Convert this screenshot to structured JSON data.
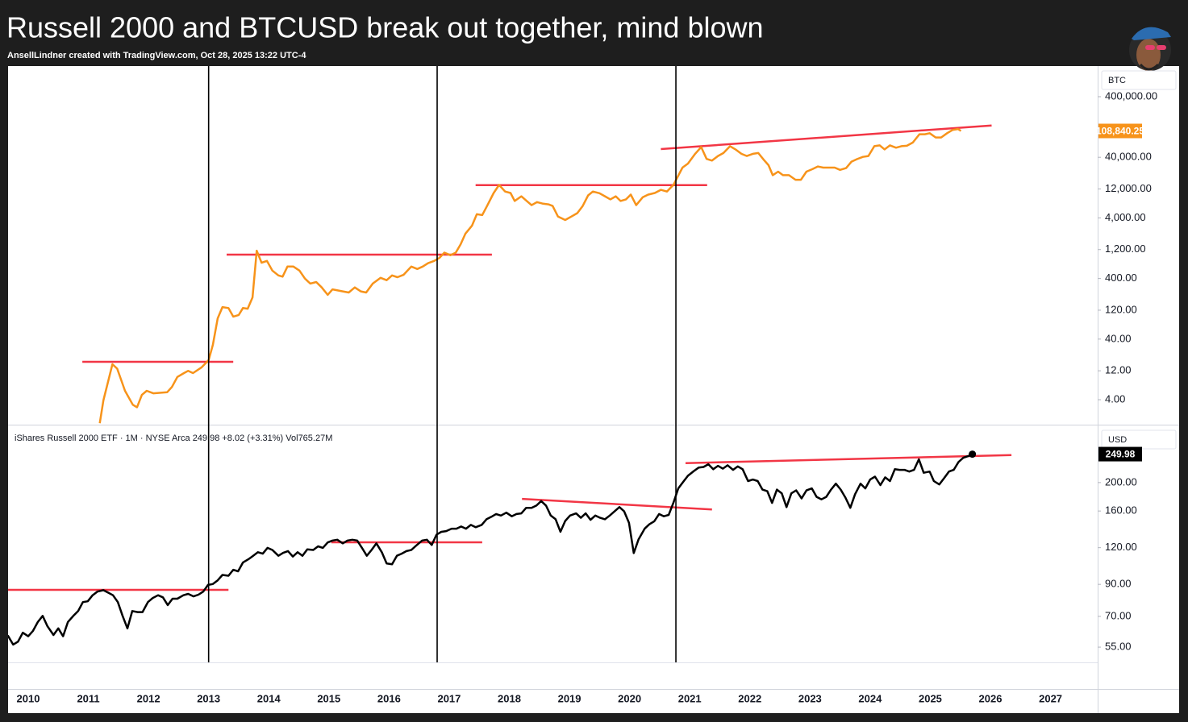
{
  "header": {
    "title": "Russell 2000 and BTCUSD break out together, mind blown",
    "subtitle": "AnsellLindner created with TradingView.com, Oct 28, 2025 13:22 UTC-4"
  },
  "chart_data": [
    {
      "type": "line",
      "axis_label": "BTC",
      "log_scale": true,
      "grid": false,
      "color": "#f7931a",
      "last_value_label": "108,840.25",
      "xlim": [
        2009.665,
        2027.77
      ],
      "ylim": [
        1.55,
        1280000
      ],
      "yticks": [
        {
          "value": 4,
          "label": "4.00"
        },
        {
          "value": 12,
          "label": "12.00"
        },
        {
          "value": 40,
          "label": "40.00"
        },
        {
          "value": 120,
          "label": "120.00"
        },
        {
          "value": 400,
          "label": "400.00"
        },
        {
          "value": 1200,
          "label": "1,200.00"
        },
        {
          "value": 4000,
          "label": "4,000.00"
        },
        {
          "value": 12000,
          "label": "12,000.00"
        },
        {
          "value": 40000,
          "label": "40,000.00"
        },
        {
          "value": 400000,
          "label": "400,000.00"
        }
      ],
      "vlines": [
        2013.0,
        2016.8,
        2020.77
      ],
      "vline_color": "#000000",
      "trendline_color": "#f23645",
      "trendlines": [
        {
          "x": [
            2010.9,
            2013.41
          ],
          "values": [
            16.9,
            16.9
          ]
        },
        {
          "x": [
            2013.3,
            2017.71
          ],
          "values": [
            990,
            990
          ]
        },
        {
          "x": [
            2017.44,
            2021.29
          ],
          "values": [
            13900,
            13900
          ]
        },
        {
          "x": [
            2020.52,
            2026.02
          ],
          "values": [
            54700,
            134000
          ]
        }
      ],
      "x": [
        2011.19,
        2011.25,
        2011.4,
        2011.48,
        2011.61,
        2011.74,
        2011.81,
        2011.89,
        2011.97,
        2012.08,
        2012.31,
        2012.39,
        2012.48,
        2012.59,
        2012.66,
        2012.74,
        2012.88,
        2013.0,
        2013.07,
        2013.15,
        2013.23,
        2013.33,
        2013.41,
        2013.5,
        2013.57,
        2013.65,
        2013.73,
        2013.8,
        2013.88,
        2013.97,
        2014.06,
        2014.16,
        2014.23,
        2014.31,
        2014.41,
        2014.51,
        2014.6,
        2014.69,
        2014.79,
        2014.88,
        2014.98,
        2015.06,
        2015.23,
        2015.33,
        2015.43,
        2015.53,
        2015.62,
        2015.73,
        2015.86,
        2015.96,
        2016.05,
        2016.14,
        2016.24,
        2016.37,
        2016.47,
        2016.56,
        2016.65,
        2016.75,
        2016.84,
        2016.92,
        2017.02,
        2017.11,
        2017.19,
        2017.27,
        2017.38,
        2017.46,
        2017.55,
        2017.63,
        2017.74,
        2017.83,
        2017.93,
        2018.02,
        2018.09,
        2018.2,
        2018.29,
        2018.37,
        2018.46,
        2018.55,
        2018.65,
        2018.72,
        2018.81,
        2018.93,
        2019.03,
        2019.13,
        2019.22,
        2019.31,
        2019.39,
        2019.5,
        2019.59,
        2019.68,
        2019.77,
        2019.85,
        2019.94,
        2020.02,
        2020.11,
        2020.22,
        2020.31,
        2020.42,
        2020.52,
        2020.62,
        2020.73,
        2020.88,
        2020.97,
        2021.09,
        2021.19,
        2021.28,
        2021.37,
        2021.47,
        2021.56,
        2021.67,
        2021.76,
        2021.86,
        2021.95,
        2022.05,
        2022.14,
        2022.23,
        2022.31,
        2022.38,
        2022.47,
        2022.55,
        2022.65,
        2022.76,
        2022.85,
        2022.94,
        2023.04,
        2023.13,
        2023.22,
        2023.32,
        2023.41,
        2023.5,
        2023.6,
        2023.69,
        2023.78,
        2023.88,
        2023.97,
        2024.07,
        2024.16,
        2024.24,
        2024.33,
        2024.43,
        2024.52,
        2024.61,
        2024.71,
        2024.82,
        2024.91,
        2024.99,
        2025.09,
        2025.18,
        2025.28,
        2025.37,
        2025.46,
        2025.51
      ],
      "values": [
        1.64,
        3.9,
        15.4,
        13.0,
        5.6,
        3.3,
        3.0,
        4.8,
        5.6,
        5.1,
        5.3,
        6.5,
        9.5,
        11.0,
        12.0,
        11.0,
        13.6,
        18.0,
        32,
        88,
        135,
        130,
        94,
        100,
        130,
        127,
        195,
        1150,
        730,
        780,
        540,
        450,
        430,
        630,
        630,
        540,
        400,
        330,
        350,
        285,
        215,
        265,
        245,
        235,
        285,
        245,
        235,
        330,
        410,
        375,
        450,
        420,
        460,
        630,
        575,
        630,
        715,
        780,
        880,
        1070,
        970,
        1070,
        1460,
        2200,
        2990,
        4600,
        4450,
        6300,
        10300,
        14000,
        10900,
        10300,
        7600,
        9100,
        7600,
        6500,
        7300,
        6900,
        6700,
        6300,
        4200,
        3700,
        4200,
        4800,
        6300,
        9400,
        10900,
        10200,
        9100,
        8100,
        9100,
        7600,
        8100,
        9700,
        6500,
        8800,
        9700,
        10300,
        11600,
        10900,
        14100,
        27000,
        31500,
        45600,
        59000,
        37600,
        35300,
        42000,
        47000,
        61000,
        54000,
        45600,
        42000,
        45600,
        47000,
        36500,
        29600,
        20300,
        23200,
        20300,
        20300,
        17000,
        17000,
        23200,
        25500,
        28200,
        27000,
        27000,
        27000,
        24800,
        26500,
        33900,
        37300,
        40600,
        42000,
        61000,
        63000,
        54000,
        63000,
        57600,
        61000,
        62000,
        70000,
        96000,
        96000,
        100000,
        85000,
        85000,
        100000,
        113000,
        117000,
        108840.25
      ]
    },
    {
      "type": "line",
      "axis_label": "USD",
      "log_scale": true,
      "grid": false,
      "color": "#000000",
      "last_value_label": "249.98",
      "legend_text": "iShares Russell 2000 ETF · 1M · NYSE Arca  249.98  +8.02 (+3.31%)  Vol765.27M",
      "xlim": [
        2009.665,
        2027.77
      ],
      "ylim": [
        48.8,
        313
      ],
      "xticks": [
        2010,
        2011,
        2012,
        2013,
        2014,
        2015,
        2016,
        2017,
        2018,
        2019,
        2020,
        2021,
        2022,
        2023,
        2024,
        2025,
        2026,
        2027
      ],
      "yticks": [
        {
          "value": 55,
          "label": "55.00"
        },
        {
          "value": 70,
          "label": "70.00"
        },
        {
          "value": 90,
          "label": "90.00"
        },
        {
          "value": 120,
          "label": "120.00"
        },
        {
          "value": 160,
          "label": "160.00"
        },
        {
          "value": 200,
          "label": "200.00"
        }
      ],
      "trendline_color": "#f23645",
      "trendlines": [
        {
          "x": [
            2009.665,
            2013.33
          ],
          "values": [
            86.2,
            86.2
          ]
        },
        {
          "x": [
            2015.04,
            2017.55
          ],
          "values": [
            125.2,
            125.2
          ]
        },
        {
          "x": [
            2018.21,
            2021.37
          ],
          "values": [
            176,
            162
          ]
        },
        {
          "x": [
            2020.93,
            2026.35
          ],
          "values": [
            233,
            248
          ]
        }
      ],
      "x": [
        2009.66,
        2009.75,
        2009.83,
        2009.91,
        2010.0,
        2010.08,
        2010.16,
        2010.24,
        2010.32,
        2010.42,
        2010.5,
        2010.58,
        2010.66,
        2010.75,
        2010.83,
        2010.91,
        2010.99,
        2011.07,
        2011.15,
        2011.25,
        2011.33,
        2011.41,
        2011.49,
        2011.57,
        2011.65,
        2011.73,
        2011.82,
        2011.9,
        2011.99,
        2012.07,
        2012.16,
        2012.24,
        2012.32,
        2012.4,
        2012.48,
        2012.58,
        2012.66,
        2012.75,
        2012.83,
        2012.91,
        2012.99,
        2013.07,
        2013.15,
        2013.23,
        2013.33,
        2013.41,
        2013.49,
        2013.57,
        2013.66,
        2013.74,
        2013.82,
        2013.9,
        2013.98,
        2014.06,
        2014.16,
        2014.24,
        2014.32,
        2014.4,
        2014.48,
        2014.56,
        2014.64,
        2014.74,
        2014.82,
        2014.9,
        2014.98,
        2015.06,
        2015.14,
        2015.23,
        2015.31,
        2015.39,
        2015.47,
        2015.55,
        2015.63,
        2015.71,
        2015.79,
        2015.88,
        2015.96,
        2016.05,
        2016.13,
        2016.21,
        2016.29,
        2016.37,
        2016.45,
        2016.55,
        2016.63,
        2016.71,
        2016.79,
        2016.87,
        2016.95,
        2017.04,
        2017.12,
        2017.2,
        2017.28,
        2017.36,
        2017.44,
        2017.54,
        2017.62,
        2017.7,
        2017.78,
        2017.86,
        2017.95,
        2018.04,
        2018.12,
        2018.2,
        2018.28,
        2018.37,
        2018.45,
        2018.53,
        2018.61,
        2018.69,
        2018.77,
        2018.85,
        2018.93,
        2019.01,
        2019.11,
        2019.19,
        2019.27,
        2019.35,
        2019.43,
        2019.51,
        2019.59,
        2019.67,
        2019.75,
        2019.83,
        2019.91,
        2019.99,
        2020.07,
        2020.15,
        2020.25,
        2020.33,
        2020.41,
        2020.49,
        2020.57,
        2020.65,
        2020.73,
        2020.81,
        2020.89,
        2020.97,
        2021.07,
        2021.15,
        2021.23,
        2021.31,
        2021.39,
        2021.47,
        2021.55,
        2021.63,
        2021.72,
        2021.8,
        2021.88,
        2021.97,
        2022.05,
        2022.13,
        2022.21,
        2022.29,
        2022.37,
        2022.45,
        2022.53,
        2022.61,
        2022.69,
        2022.77,
        2022.86,
        2022.94,
        2023.03,
        2023.11,
        2023.19,
        2023.27,
        2023.35,
        2023.43,
        2023.51,
        2023.59,
        2023.67,
        2023.75,
        2023.84,
        2023.92,
        2024.0,
        2024.08,
        2024.17,
        2024.25,
        2024.33,
        2024.41,
        2024.49,
        2024.57,
        2024.65,
        2024.73,
        2024.81,
        2024.89,
        2024.99,
        2025.06,
        2025.15,
        2025.23,
        2025.31,
        2025.39,
        2025.47,
        2025.55,
        2025.63,
        2025.7
      ],
      "values": [
        60.3,
        56.1,
        57.4,
        61.6,
        59.9,
        62.5,
        67.0,
        70.3,
        64.8,
        60.5,
        63.7,
        59.9,
        67.0,
        70.3,
        73.0,
        78.3,
        78.8,
        82.6,
        85.0,
        86.0,
        84.3,
        82.6,
        78.3,
        70.3,
        63.7,
        73.0,
        72.4,
        72.4,
        78.3,
        80.8,
        82.6,
        81.3,
        76.5,
        80.4,
        80.4,
        82.6,
        83.5,
        81.9,
        83.0,
        85.0,
        89.6,
        90.2,
        92.9,
        96.9,
        96.3,
        100.9,
        99.7,
        106.8,
        109.5,
        112.6,
        115.8,
        114.5,
        119.8,
        117.9,
        112.6,
        115.2,
        116.8,
        111.9,
        115.8,
        112.6,
        118.5,
        117.9,
        121.3,
        119.8,
        125.0,
        126.9,
        127.7,
        124.1,
        126.9,
        127.7,
        126.9,
        119.8,
        112.6,
        117.9,
        124.1,
        115.8,
        106.0,
        105.4,
        112.6,
        114.5,
        116.8,
        117.9,
        121.9,
        126.9,
        127.7,
        122.6,
        133.0,
        135.9,
        136.7,
        139.3,
        139.3,
        141.7,
        139.3,
        143.5,
        140.9,
        143.5,
        150.0,
        152.8,
        156.3,
        154.4,
        157.9,
        153.5,
        156.3,
        157.0,
        164.0,
        164.0,
        167.0,
        173.0,
        167.0,
        154.4,
        150.0,
        136.0,
        148.0,
        154.4,
        157.0,
        151.7,
        157.0,
        149.3,
        154.4,
        151.7,
        150.0,
        154.4,
        159.5,
        165.0,
        159.5,
        145.8,
        115.0,
        128.2,
        139.3,
        144.2,
        147.6,
        156.3,
        153.5,
        155.2,
        171.0,
        191.0,
        200.9,
        211.0,
        219.0,
        225.0,
        226.0,
        231.0,
        222.0,
        228.0,
        223.0,
        229.0,
        221.0,
        227.0,
        222.0,
        202.3,
        204.8,
        202.3,
        189.3,
        186.9,
        170.5,
        189.3,
        183.8,
        165.0,
        183.8,
        188.0,
        176.6,
        188.0,
        191.0,
        178.8,
        175.3,
        178.8,
        189.3,
        198.3,
        189.3,
        177.7,
        164.0,
        182.6,
        198.3,
        191.0,
        204.8,
        209.5,
        196.0,
        208.3,
        202.3,
        222.0,
        221.0,
        221.0,
        218.0,
        221.0,
        240.0,
        216.0,
        218.0,
        202.3,
        197.0,
        207.0,
        218.0,
        221.0,
        235.0,
        243.0,
        246.0,
        249.98
      ]
    }
  ]
}
